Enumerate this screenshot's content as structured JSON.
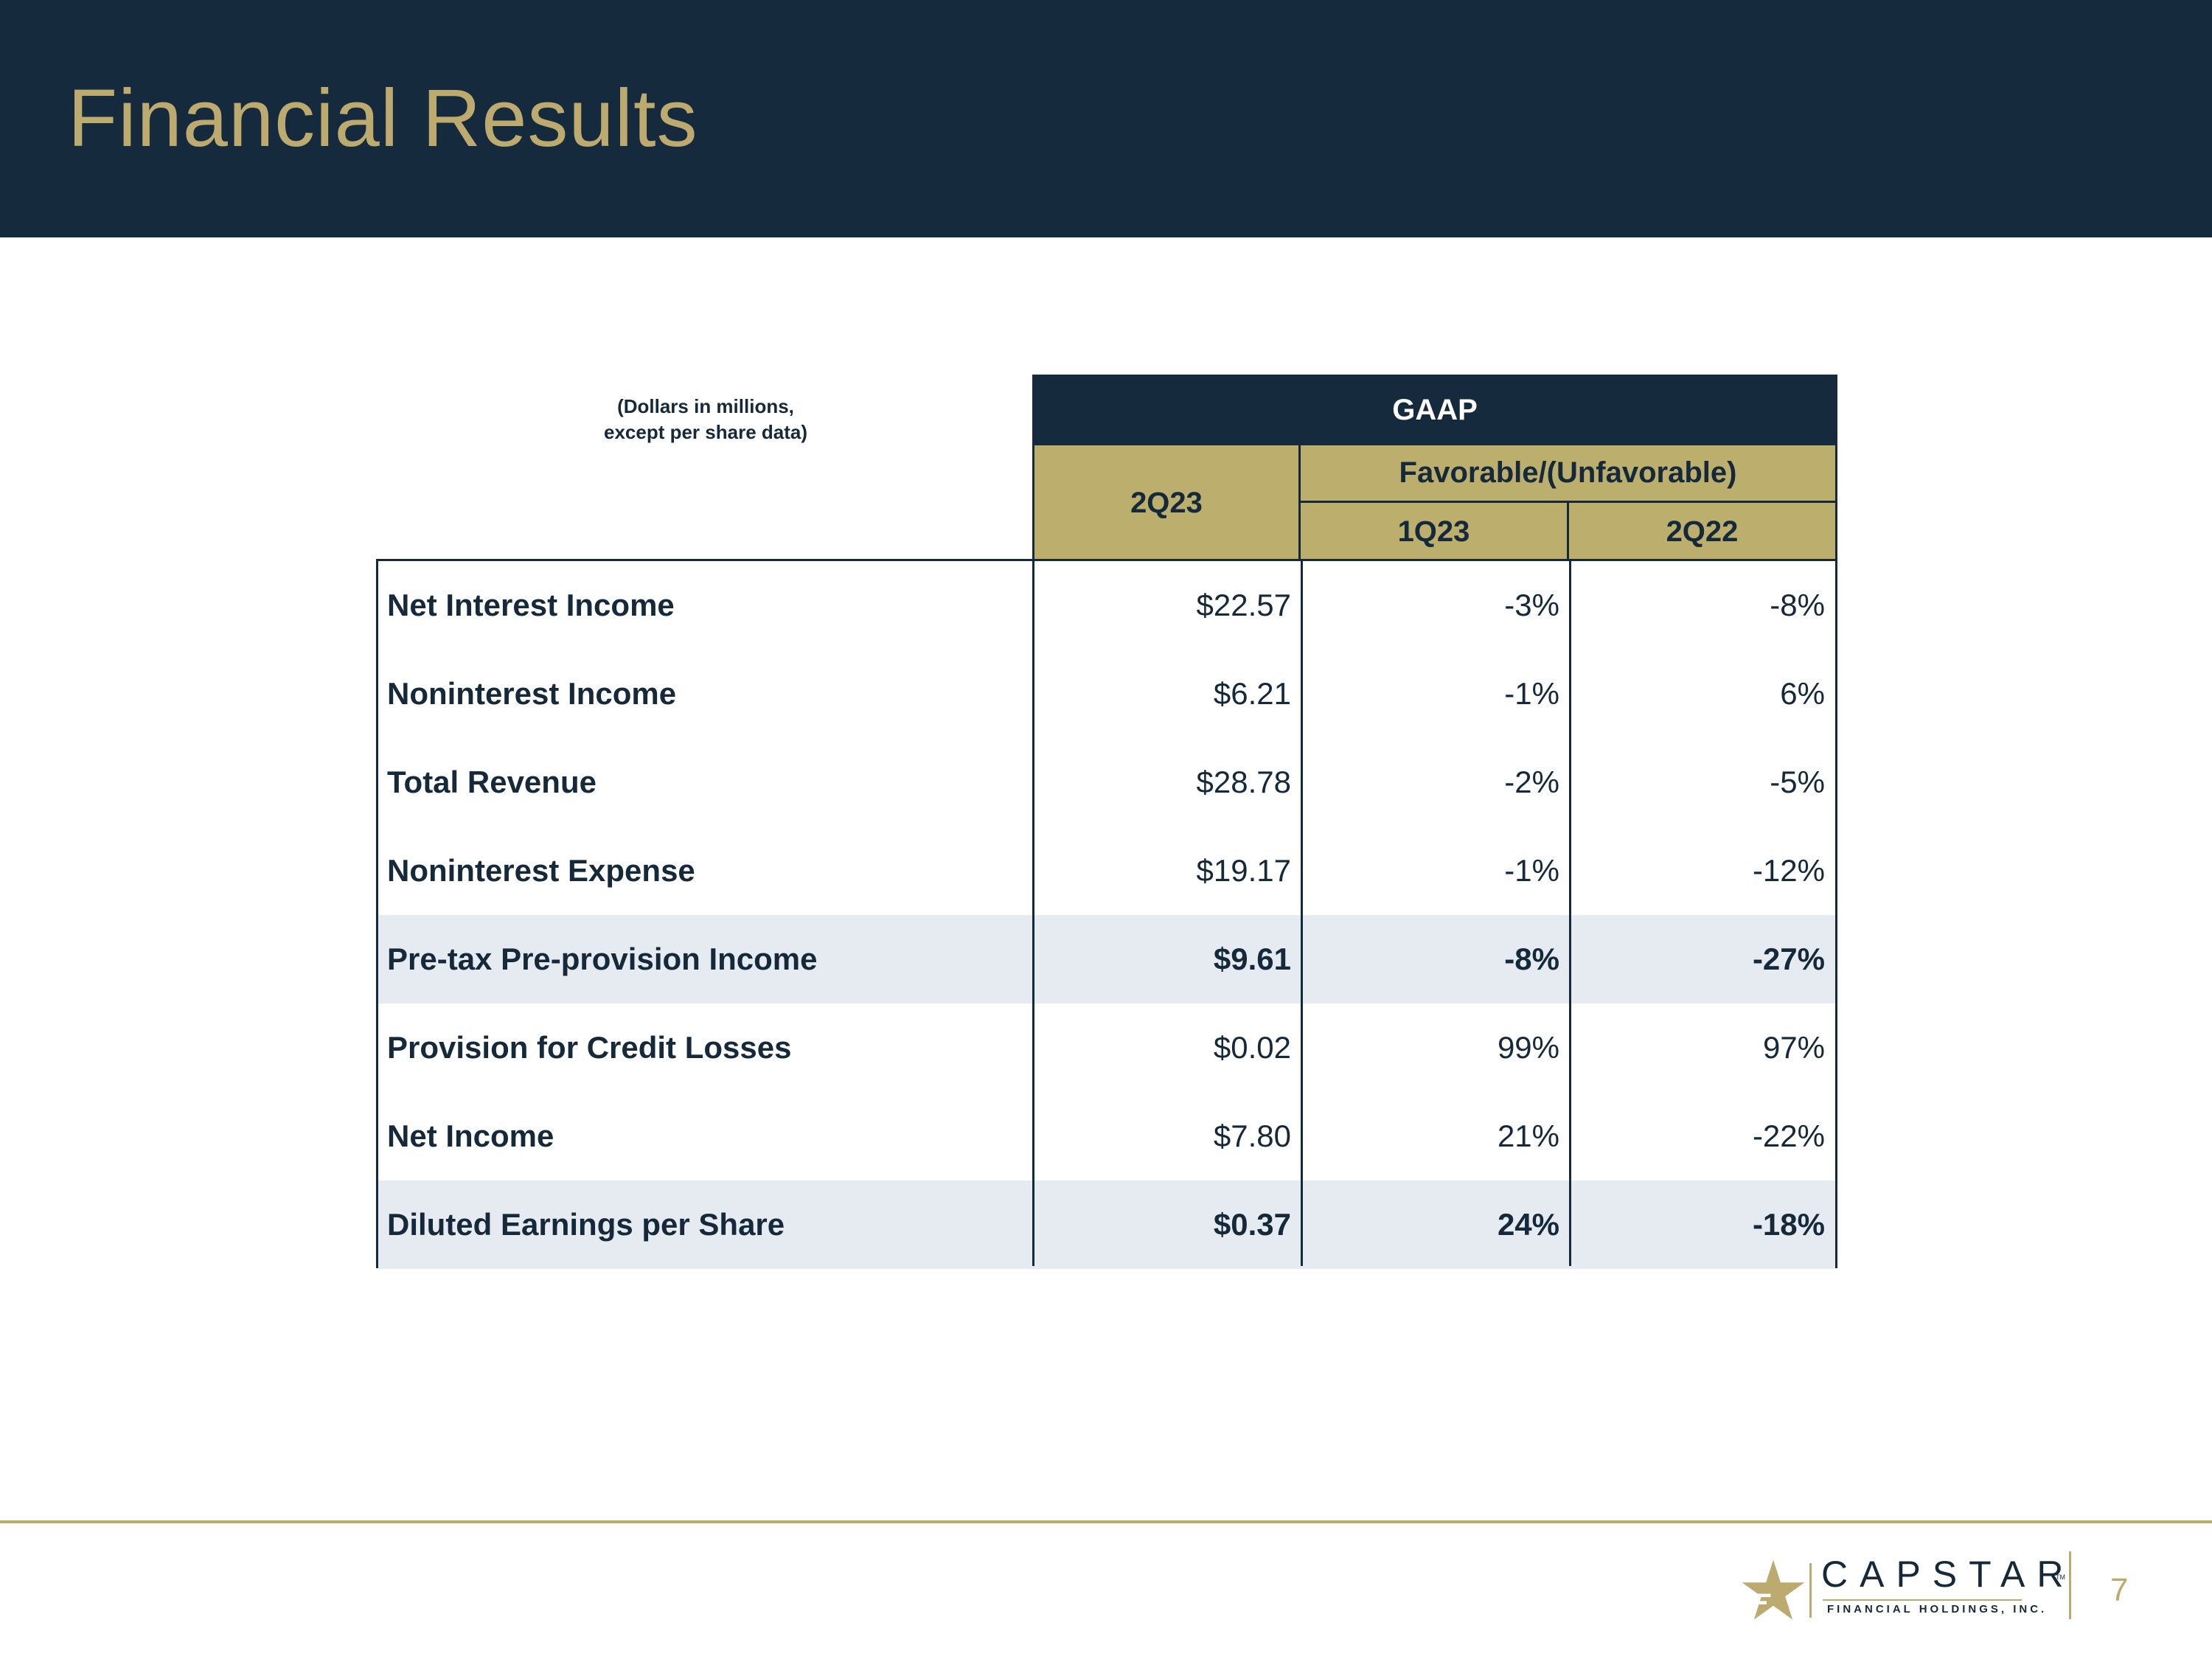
{
  "title": "Financial Results",
  "note": {
    "line1": "(Dollars in millions,",
    "line2": "except per share data)"
  },
  "table": {
    "group_header": "GAAP",
    "col_current": "2Q23",
    "compare_header": "Favorable/(Unfavorable)",
    "col_compare_1": "1Q23",
    "col_compare_2": "2Q22",
    "rows": [
      {
        "label": "Net Interest Income",
        "value": "$22.57",
        "vs_1q23": "-3%",
        "vs_2q22": "-8%"
      },
      {
        "label": "Noninterest Income",
        "value": "$6.21",
        "vs_1q23": "-1%",
        "vs_2q22": "6%"
      },
      {
        "label": "Total Revenue",
        "value": "$28.78",
        "vs_1q23": "-2%",
        "vs_2q22": "-5%"
      },
      {
        "label": "Noninterest Expense",
        "value": "$19.17",
        "vs_1q23": "-1%",
        "vs_2q22": "-12%"
      },
      {
        "label": "Pre-tax Pre-provision Income",
        "value": "$9.61",
        "vs_1q23": "-8%",
        "vs_2q22": "-27%",
        "highlight": true
      },
      {
        "label": "Provision for Credit Losses",
        "value": "$0.02",
        "vs_1q23": "99%",
        "vs_2q22": "97%"
      },
      {
        "label": "Net Income",
        "value": "$7.80",
        "vs_1q23": "21%",
        "vs_2q22": "-22%"
      },
      {
        "label": "Diluted Earnings per Share",
        "value": "$0.37",
        "vs_1q23": "24%",
        "vs_2q22": "-18%",
        "highlight": true
      }
    ]
  },
  "logo": {
    "name": "CAPSTAR",
    "subtitle": "FINANCIAL HOLDINGS, INC.",
    "tm": "TM"
  },
  "page_number": "7",
  "colors": {
    "navy": "#152a3d",
    "gold": "#bcaa6f",
    "highlight_row": "#e6ebf2"
  }
}
